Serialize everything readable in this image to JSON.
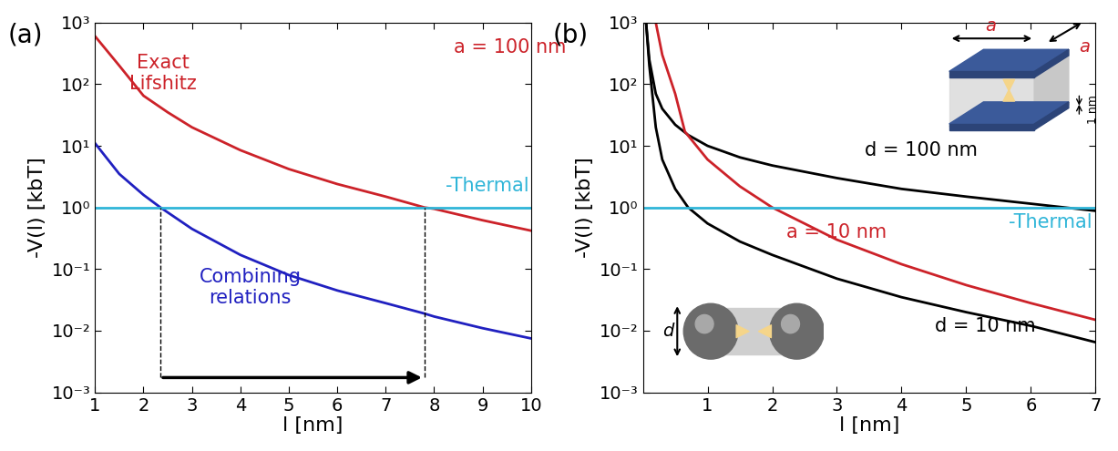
{
  "chart_data": [
    {
      "type": "line",
      "title": "(a)",
      "x_label": "l [nm]",
      "y_label": "-V(l) [kbT]",
      "log": "y",
      "grid": false,
      "legend": false,
      "xlim": [
        1,
        10
      ],
      "xticks": [
        1,
        2,
        3,
        4,
        5,
        6,
        7,
        8,
        9,
        10
      ],
      "ylim": [
        0.001,
        1000
      ],
      "yticks": [
        {
          "value": 0.001,
          "label": "10⁻³"
        },
        {
          "value": 0.01,
          "label": "10⁻²"
        },
        {
          "value": 0.1,
          "label": "10⁻¹"
        },
        {
          "value": 1,
          "label": "10⁰"
        },
        {
          "value": 10,
          "label": "10¹"
        },
        {
          "value": 100,
          "label": "10²"
        },
        {
          "value": 1000,
          "label": "10³"
        }
      ],
      "series": [
        {
          "name": "Exact\nLifshitz",
          "color": "#cc2229",
          "x": [
            1,
            1.5,
            2,
            2.5,
            3,
            4,
            5,
            6,
            7,
            7.8,
            8,
            9,
            10
          ],
          "values": [
            600,
            200,
            65,
            35,
            20,
            8.5,
            4.2,
            2.4,
            1.5,
            1.0,
            0.95,
            0.62,
            0.42
          ]
        },
        {
          "name": "Combining\nrelations",
          "color": "#2020c0",
          "x": [
            1,
            1.5,
            2,
            2.35,
            3,
            4,
            5,
            6,
            7,
            7.8,
            8,
            9,
            10
          ],
          "values": [
            11,
            3.5,
            1.6,
            1.0,
            0.45,
            0.17,
            0.08,
            0.045,
            0.028,
            0.019,
            0.017,
            0.011,
            0.0075
          ]
        },
        {
          "name": "-Thermal",
          "color": "#2fb5d8",
          "x": [
            1,
            10
          ],
          "values": [
            1,
            1
          ]
        }
      ],
      "crossings": [
        2.35,
        7.8
      ],
      "annotations": [
        {
          "text": "a = 100 nm",
          "color": "#cc2229"
        }
      ]
    },
    {
      "type": "line",
      "title": "(b)",
      "x_label": "l [nm]",
      "y_label": "-V(l) [kbT]",
      "log": "y",
      "grid": false,
      "legend": false,
      "xlim": [
        0,
        7
      ],
      "xticks": [
        1,
        2,
        3,
        4,
        5,
        6,
        7
      ],
      "ylim": [
        0.001,
        1000
      ],
      "yticks": [
        {
          "value": 0.001,
          "label": "10⁻³"
        },
        {
          "value": 0.01,
          "label": "10⁻²"
        },
        {
          "value": 0.1,
          "label": "10⁻¹"
        },
        {
          "value": 1,
          "label": "10⁰"
        },
        {
          "value": 10,
          "label": "10¹"
        },
        {
          "value": 100,
          "label": "10²"
        },
        {
          "value": 1000,
          "label": "10³"
        }
      ],
      "series": [
        {
          "name": "d = 100 nm",
          "color": "#000000",
          "x": [
            0.05,
            0.1,
            0.2,
            0.3,
            0.5,
            0.7,
            1,
            1.5,
            2,
            3,
            4,
            5,
            6,
            7
          ],
          "values": [
            1000,
            250,
            70,
            40,
            22,
            15,
            10,
            6.5,
            4.8,
            3.0,
            2.0,
            1.5,
            1.15,
            0.88
          ]
        },
        {
          "name": "a = 10 nm",
          "color": "#cc2229",
          "x": [
            0.2,
            0.3,
            0.5,
            0.65,
            1,
            1.5,
            2,
            3,
            4,
            5,
            6,
            7
          ],
          "values": [
            1000,
            300,
            70,
            17,
            6,
            2.2,
            1.0,
            0.3,
            0.12,
            0.055,
            0.028,
            0.015
          ]
        },
        {
          "name": "d = 10 nm",
          "color": "#000000",
          "x": [
            0.05,
            0.1,
            0.2,
            0.3,
            0.5,
            0.7,
            1,
            1.5,
            2,
            3,
            4,
            5,
            6,
            7
          ],
          "values": [
            1000,
            200,
            20,
            6,
            2.0,
            1.0,
            0.55,
            0.28,
            0.17,
            0.07,
            0.035,
            0.02,
            0.012,
            0.0065
          ]
        },
        {
          "name": "-Thermal",
          "color": "#2fb5d8",
          "x": [
            0,
            7
          ],
          "values": [
            1,
            1
          ]
        }
      ],
      "annotations": [
        {
          "text": "a",
          "color": "#cc2229"
        },
        {
          "text": "a",
          "color": "#cc2229"
        },
        {
          "text": "1 nm",
          "color": "#000000"
        },
        {
          "text": "d",
          "color": "#000000"
        }
      ]
    }
  ]
}
